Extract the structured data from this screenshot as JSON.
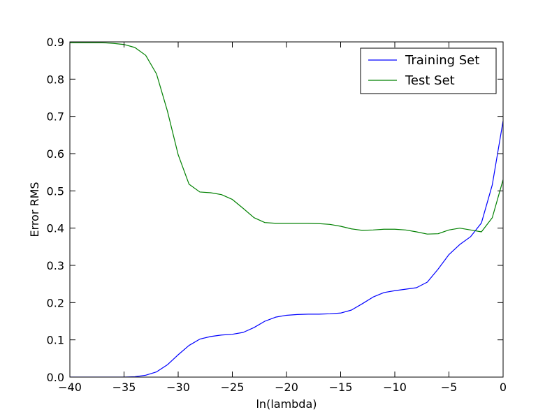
{
  "chart_data": {
    "type": "line",
    "title": "",
    "xlabel": "ln(lambda)",
    "ylabel": "Error RMS",
    "xlim": [
      -40,
      0
    ],
    "ylim": [
      0.0,
      0.9
    ],
    "xticks": [
      -40,
      -35,
      -30,
      -25,
      -20,
      -15,
      -10,
      -5,
      0
    ],
    "xtick_labels": [
      "−40",
      "−35",
      "−30",
      "−25",
      "−20",
      "−15",
      "−10",
      "−5",
      "0"
    ],
    "yticks": [
      0.0,
      0.1,
      0.2,
      0.3,
      0.4,
      0.5,
      0.6,
      0.7,
      0.8,
      0.9
    ],
    "ytick_labels": [
      "0.0",
      "0.1",
      "0.2",
      "0.3",
      "0.4",
      "0.5",
      "0.6",
      "0.7",
      "0.8",
      "0.9"
    ],
    "grid": false,
    "legend_position": "top-right",
    "x": [
      -40,
      -39,
      -38,
      -37,
      -36,
      -35,
      -34,
      -33,
      -32,
      -31,
      -30,
      -29,
      -28,
      -27,
      -26,
      -25,
      -24,
      -23,
      -22,
      -21,
      -20,
      -19,
      -18,
      -17,
      -16,
      -15,
      -14,
      -13,
      -12,
      -11,
      -10,
      -9,
      -8,
      -7,
      -6,
      -5,
      -4,
      -3,
      -2,
      -1,
      0
    ],
    "series": [
      {
        "name": "Training Set",
        "color": "#0000ff",
        "values": [
          0.0,
          0.0,
          0.0,
          0.0,
          0.0,
          0.0,
          0.001,
          0.005,
          0.014,
          0.033,
          0.06,
          0.085,
          0.102,
          0.109,
          0.113,
          0.115,
          0.12,
          0.133,
          0.15,
          0.161,
          0.166,
          0.168,
          0.169,
          0.169,
          0.17,
          0.172,
          0.18,
          0.197,
          0.215,
          0.227,
          0.232,
          0.236,
          0.24,
          0.255,
          0.29,
          0.329,
          0.356,
          0.377,
          0.414,
          0.516,
          0.688
        ]
      },
      {
        "name": "Test Set",
        "color": "#008000",
        "values": [
          0.898,
          0.898,
          0.898,
          0.898,
          0.896,
          0.893,
          0.885,
          0.864,
          0.814,
          0.715,
          0.597,
          0.518,
          0.497,
          0.495,
          0.49,
          0.477,
          0.453,
          0.428,
          0.415,
          0.413,
          0.413,
          0.413,
          0.413,
          0.412,
          0.41,
          0.405,
          0.398,
          0.394,
          0.395,
          0.397,
          0.397,
          0.395,
          0.39,
          0.384,
          0.385,
          0.395,
          0.4,
          0.395,
          0.39,
          0.428,
          0.53
        ]
      }
    ]
  }
}
